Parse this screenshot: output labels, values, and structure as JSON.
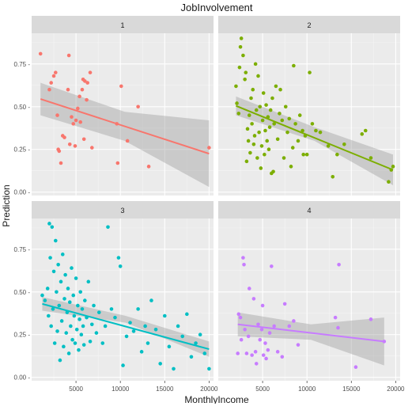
{
  "chart_data": {
    "type": "scatter",
    "title": "JobInvolvement",
    "xlabel": "MonthlyIncome",
    "ylabel": "Prediction",
    "xlim": [
      0,
      20500
    ],
    "ylim": [
      -0.02,
      0.93
    ],
    "x_ticks": [
      5000,
      10000,
      15000,
      20000
    ],
    "x_tick_labels": [
      "5000",
      "10000",
      "15000",
      "20000"
    ],
    "y_ticks": [
      0.0,
      0.25,
      0.5,
      0.75
    ],
    "y_tick_labels": [
      "0.00 -",
      "0.25 -",
      "0.50 -",
      "0.75 -"
    ],
    "grid": true,
    "panels": [
      {
        "label": "1",
        "color": "#f8766d",
        "points": [
          [
            1000,
            0.81
          ],
          [
            2000,
            0.6
          ],
          [
            2200,
            0.64
          ],
          [
            2500,
            0.68
          ],
          [
            2700,
            0.7
          ],
          [
            2900,
            0.45
          ],
          [
            3000,
            0.25
          ],
          [
            3100,
            0.24
          ],
          [
            3300,
            0.17
          ],
          [
            3500,
            0.33
          ],
          [
            3700,
            0.32
          ],
          [
            4100,
            0.6
          ],
          [
            4200,
            0.8
          ],
          [
            4300,
            0.28
          ],
          [
            4500,
            0.44
          ],
          [
            4700,
            0.4
          ],
          [
            4900,
            0.27
          ],
          [
            5000,
            0.42
          ],
          [
            5200,
            0.49
          ],
          [
            5400,
            0.56
          ],
          [
            5500,
            0.41
          ],
          [
            5700,
            0.6
          ],
          [
            5800,
            0.66
          ],
          [
            5900,
            0.31
          ],
          [
            6000,
            0.65
          ],
          [
            6200,
            0.54
          ],
          [
            6300,
            0.64
          ],
          [
            6600,
            0.7
          ],
          [
            6800,
            0.26
          ],
          [
            9600,
            0.4
          ],
          [
            9700,
            0.17
          ],
          [
            10100,
            0.62
          ],
          [
            10800,
            0.3
          ],
          [
            12000,
            0.5
          ],
          [
            13200,
            0.15
          ],
          [
            20000,
            0.26
          ]
        ],
        "fit": {
          "x": [
            1000,
            20000
          ],
          "y": [
            0.545,
            0.225
          ]
        },
        "band": {
          "upper": [
            0.64,
            0.47,
            0.42
          ],
          "lower": [
            0.45,
            0.3,
            0.03
          ]
        }
      },
      {
        "label": "2",
        "color": "#7cae00",
        "points": [
          [
            2000,
            0.62
          ],
          [
            2100,
            0.52
          ],
          [
            2300,
            0.46
          ],
          [
            2400,
            0.73
          ],
          [
            2500,
            0.85
          ],
          [
            2600,
            0.9
          ],
          [
            2800,
            0.8
          ],
          [
            3000,
            0.66
          ],
          [
            3100,
            0.7
          ],
          [
            3200,
            0.18
          ],
          [
            3300,
            0.37
          ],
          [
            3400,
            0.3
          ],
          [
            3500,
            0.45
          ],
          [
            3600,
            0.23
          ],
          [
            3700,
            0.55
          ],
          [
            3800,
            0.4
          ],
          [
            3900,
            0.6
          ],
          [
            4000,
            0.28
          ],
          [
            4100,
            0.33
          ],
          [
            4200,
            0.75
          ],
          [
            4300,
            0.48
          ],
          [
            4400,
            0.2
          ],
          [
            4500,
            0.68
          ],
          [
            4600,
            0.35
          ],
          [
            4700,
            0.5
          ],
          [
            4800,
            0.14
          ],
          [
            4900,
            0.27
          ],
          [
            5000,
            0.42
          ],
          [
            5100,
            0.58
          ],
          [
            5200,
            0.22
          ],
          [
            5300,
            0.36
          ],
          [
            5400,
            0.51
          ],
          [
            5500,
            0.3
          ],
          [
            5600,
            0.44
          ],
          [
            5700,
            0.25
          ],
          [
            5800,
            0.38
          ],
          [
            5900,
            0.48
          ],
          [
            6000,
            0.11
          ],
          [
            6100,
            0.55
          ],
          [
            6200,
            0.12
          ],
          [
            6300,
            0.4
          ],
          [
            6500,
            0.62
          ],
          [
            6700,
            0.31
          ],
          [
            6900,
            0.46
          ],
          [
            7000,
            0.6
          ],
          [
            7200,
            0.42
          ],
          [
            7400,
            0.2
          ],
          [
            7600,
            0.5
          ],
          [
            7800,
            0.35
          ],
          [
            8000,
            0.43
          ],
          [
            8200,
            0.15
          ],
          [
            8400,
            0.26
          ],
          [
            8500,
            0.74
          ],
          [
            8700,
            0.4
          ],
          [
            9000,
            0.3
          ],
          [
            9200,
            0.45
          ],
          [
            9500,
            0.36
          ],
          [
            9600,
            0.22
          ],
          [
            9800,
            0.33
          ],
          [
            10000,
            0.22
          ],
          [
            10300,
            0.7
          ],
          [
            10600,
            0.4
          ],
          [
            11000,
            0.36
          ],
          [
            11500,
            0.35
          ],
          [
            12400,
            0.27
          ],
          [
            12900,
            0.09
          ],
          [
            13400,
            0.22
          ],
          [
            14200,
            0.28
          ],
          [
            16200,
            0.34
          ],
          [
            16600,
            0.36
          ],
          [
            17200,
            0.2
          ],
          [
            19200,
            0.06
          ],
          [
            19500,
            0.13
          ],
          [
            19700,
            0.15
          ]
        ],
        "fit": {
          "x": [
            2000,
            19700
          ],
          "y": [
            0.505,
            0.13
          ]
        },
        "band": {
          "upper": [
            0.56,
            0.38,
            0.22
          ],
          "lower": [
            0.45,
            0.3,
            0.04
          ]
        }
      },
      {
        "label": "3",
        "color": "#00bfc4",
        "points": [
          [
            1200,
            0.48
          ],
          [
            1500,
            0.45
          ],
          [
            1800,
            0.52
          ],
          [
            1900,
            0.36
          ],
          [
            2000,
            0.9
          ],
          [
            2100,
            0.7
          ],
          [
            2200,
            0.3
          ],
          [
            2300,
            0.88
          ],
          [
            2400,
            0.4
          ],
          [
            2500,
            0.62
          ],
          [
            2600,
            0.2
          ],
          [
            2700,
            0.8
          ],
          [
            2800,
            0.5
          ],
          [
            2900,
            0.27
          ],
          [
            3000,
            0.66
          ],
          [
            3100,
            0.42
          ],
          [
            3200,
            0.1
          ],
          [
            3300,
            0.56
          ],
          [
            3400,
            0.33
          ],
          [
            3500,
            0.72
          ],
          [
            3600,
            0.18
          ],
          [
            3700,
            0.46
          ],
          [
            3800,
            0.6
          ],
          [
            3900,
            0.26
          ],
          [
            4000,
            0.38
          ],
          [
            4100,
            0.52
          ],
          [
            4200,
            0.14
          ],
          [
            4300,
            0.44
          ],
          [
            4400,
            0.3
          ],
          [
            4500,
            0.64
          ],
          [
            4600,
            0.22
          ],
          [
            4700,
            0.48
          ],
          [
            4800,
            0.36
          ],
          [
            4900,
            0.2
          ],
          [
            5000,
            0.58
          ],
          [
            5100,
            0.28
          ],
          [
            5200,
            0.42
          ],
          [
            5300,
            0.16
          ],
          [
            5400,
            0.34
          ],
          [
            5500,
            0.5
          ],
          [
            5600,
            0.25
          ],
          [
            5700,
            0.4
          ],
          [
            5800,
            0.3
          ],
          [
            5900,
            0.19
          ],
          [
            6000,
            0.45
          ],
          [
            6200,
            0.35
          ],
          [
            6400,
            0.56
          ],
          [
            6600,
            0.21
          ],
          [
            6800,
            0.31
          ],
          [
            7000,
            0.42
          ],
          [
            7300,
            0.26
          ],
          [
            7600,
            0.38
          ],
          [
            8000,
            0.2
          ],
          [
            8300,
            0.3
          ],
          [
            8600,
            0.88
          ],
          [
            9000,
            0.4
          ],
          [
            9400,
            0.35
          ],
          [
            9800,
            0.7
          ],
          [
            10000,
            0.65
          ],
          [
            10300,
            0.07
          ],
          [
            10700,
            0.24
          ],
          [
            11100,
            0.32
          ],
          [
            11500,
            0.27
          ],
          [
            12000,
            0.4
          ],
          [
            12400,
            0.15
          ],
          [
            12800,
            0.3
          ],
          [
            13100,
            0.2
          ],
          [
            13500,
            0.45
          ],
          [
            14000,
            0.28
          ],
          [
            14500,
            0.08
          ],
          [
            15000,
            0.36
          ],
          [
            15500,
            0.18
          ],
          [
            16000,
            0.05
          ],
          [
            16500,
            0.3
          ],
          [
            17000,
            0.24
          ],
          [
            17500,
            0.37
          ],
          [
            18000,
            0.12
          ],
          [
            18500,
            0.2
          ],
          [
            19000,
            0.25
          ],
          [
            19500,
            0.14
          ],
          [
            20000,
            0.05
          ]
        ],
        "fit": {
          "x": [
            1200,
            20000
          ],
          "y": [
            0.43,
            0.165
          ]
        },
        "band": {
          "upper": [
            0.47,
            0.36,
            0.21
          ],
          "lower": [
            0.39,
            0.32,
            0.12
          ]
        }
      },
      {
        "label": "4",
        "color": "#c77cff",
        "points": [
          [
            2200,
            0.14
          ],
          [
            2300,
            0.37
          ],
          [
            2500,
            0.35
          ],
          [
            2600,
            0.22
          ],
          [
            2800,
            0.7
          ],
          [
            2900,
            0.66
          ],
          [
            3000,
            0.28
          ],
          [
            3200,
            0.14
          ],
          [
            3400,
            0.24
          ],
          [
            3500,
            0.52
          ],
          [
            3800,
            0.13
          ],
          [
            4000,
            0.46
          ],
          [
            4200,
            0.15
          ],
          [
            4300,
            0.08
          ],
          [
            4500,
            0.31
          ],
          [
            4700,
            0.22
          ],
          [
            4900,
            0.28
          ],
          [
            5000,
            0.42
          ],
          [
            5100,
            0.13
          ],
          [
            5300,
            0.2
          ],
          [
            5400,
            0.11
          ],
          [
            5600,
            0.16
          ],
          [
            5800,
            0.26
          ],
          [
            6000,
            0.65
          ],
          [
            6300,
            0.3
          ],
          [
            6700,
            0.15
          ],
          [
            7200,
            0.12
          ],
          [
            7500,
            0.43
          ],
          [
            8000,
            0.3
          ],
          [
            8500,
            0.33
          ],
          [
            9000,
            0.19
          ],
          [
            13200,
            0.35
          ],
          [
            13500,
            0.29
          ],
          [
            13600,
            0.66
          ],
          [
            15500,
            0.06
          ],
          [
            17200,
            0.34
          ],
          [
            18700,
            0.21
          ]
        ],
        "fit": {
          "x": [
            2200,
            18700
          ],
          "y": [
            0.31,
            0.21
          ]
        },
        "band": {
          "upper": [
            0.38,
            0.31,
            0.35
          ],
          "lower": [
            0.24,
            0.22,
            0.07
          ]
        }
      }
    ]
  }
}
